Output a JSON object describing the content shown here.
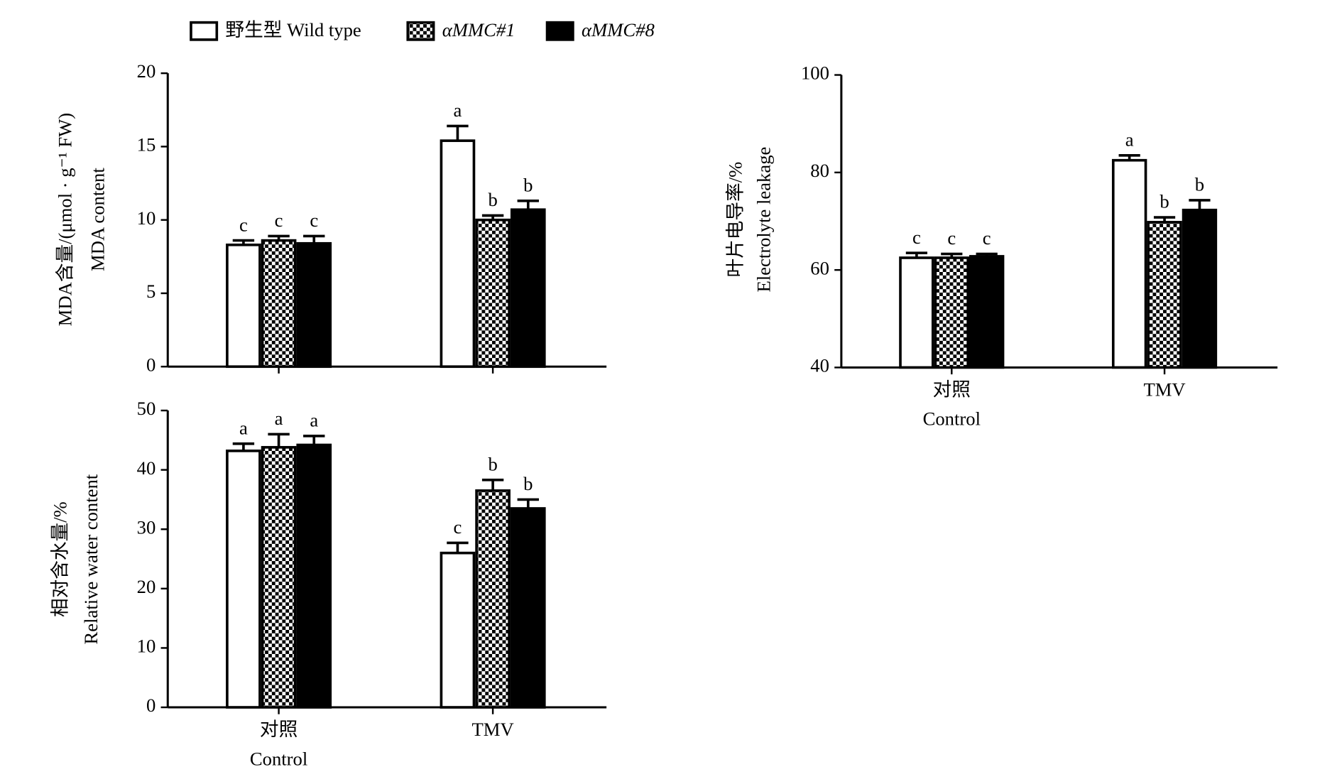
{
  "legend": [
    {
      "name": "野生型 Wild type",
      "color": "#ffffff"
    },
    {
      "name": "αMMC#1",
      "color": "#000000",
      "pattern": "checker"
    },
    {
      "name": "αMMC#8",
      "color": "#000000"
    }
  ],
  "chart_data": [
    {
      "type": "bar",
      "y_label": [
        "MDA含量/(μmol · g⁻¹ FW)",
        "MDA content"
      ],
      "categories": [
        null,
        null
      ],
      "ylim": [
        0,
        20
      ],
      "yticks": [
        0,
        5,
        10,
        15,
        20
      ],
      "series": [
        {
          "values": [
            8.3,
            15.4
          ],
          "errors": [
            0.3,
            1.0
          ],
          "letters": [
            "c",
            "a"
          ]
        },
        {
          "values": [
            8.6,
            10.0
          ],
          "errors": [
            0.3,
            0.3
          ],
          "letters": [
            "c",
            "b"
          ]
        },
        {
          "values": [
            8.4,
            10.7
          ],
          "errors": [
            0.5,
            0.6
          ],
          "letters": [
            "c",
            "b"
          ]
        }
      ]
    },
    {
      "type": "bar",
      "y_label": [
        "叶片电导率/%",
        "Electrolyte leakage"
      ],
      "categories": [
        [
          "对照",
          "Control"
        ],
        [
          "TMV"
        ]
      ],
      "ylim": [
        40,
        100
      ],
      "yticks": [
        40,
        60,
        80,
        100
      ],
      "series": [
        {
          "values": [
            62.5,
            82.5
          ],
          "errors": [
            1.0,
            1.0
          ],
          "letters": [
            "c",
            "a"
          ]
        },
        {
          "values": [
            62.5,
            69.8
          ],
          "errors": [
            0.8,
            1.0
          ],
          "letters": [
            "c",
            "b"
          ]
        },
        {
          "values": [
            62.8,
            72.3
          ],
          "errors": [
            0.5,
            2.0
          ],
          "letters": [
            "c",
            "b"
          ]
        }
      ]
    },
    {
      "type": "bar",
      "y_label": [
        "相对含水量/%",
        "Relative water content"
      ],
      "categories": [
        [
          "对照",
          "Control"
        ],
        [
          "TMV"
        ]
      ],
      "ylim": [
        0,
        50
      ],
      "yticks": [
        0,
        10,
        20,
        30,
        40,
        50
      ],
      "series": [
        {
          "values": [
            43.2,
            26.0
          ],
          "errors": [
            1.2,
            1.7
          ],
          "letters": [
            "a",
            "c"
          ]
        },
        {
          "values": [
            43.8,
            36.5
          ],
          "errors": [
            2.2,
            1.8
          ],
          "letters": [
            "a",
            "b"
          ]
        },
        {
          "values": [
            44.2,
            33.5
          ],
          "errors": [
            1.5,
            1.5
          ],
          "letters": [
            "a",
            "b"
          ]
        }
      ]
    }
  ]
}
